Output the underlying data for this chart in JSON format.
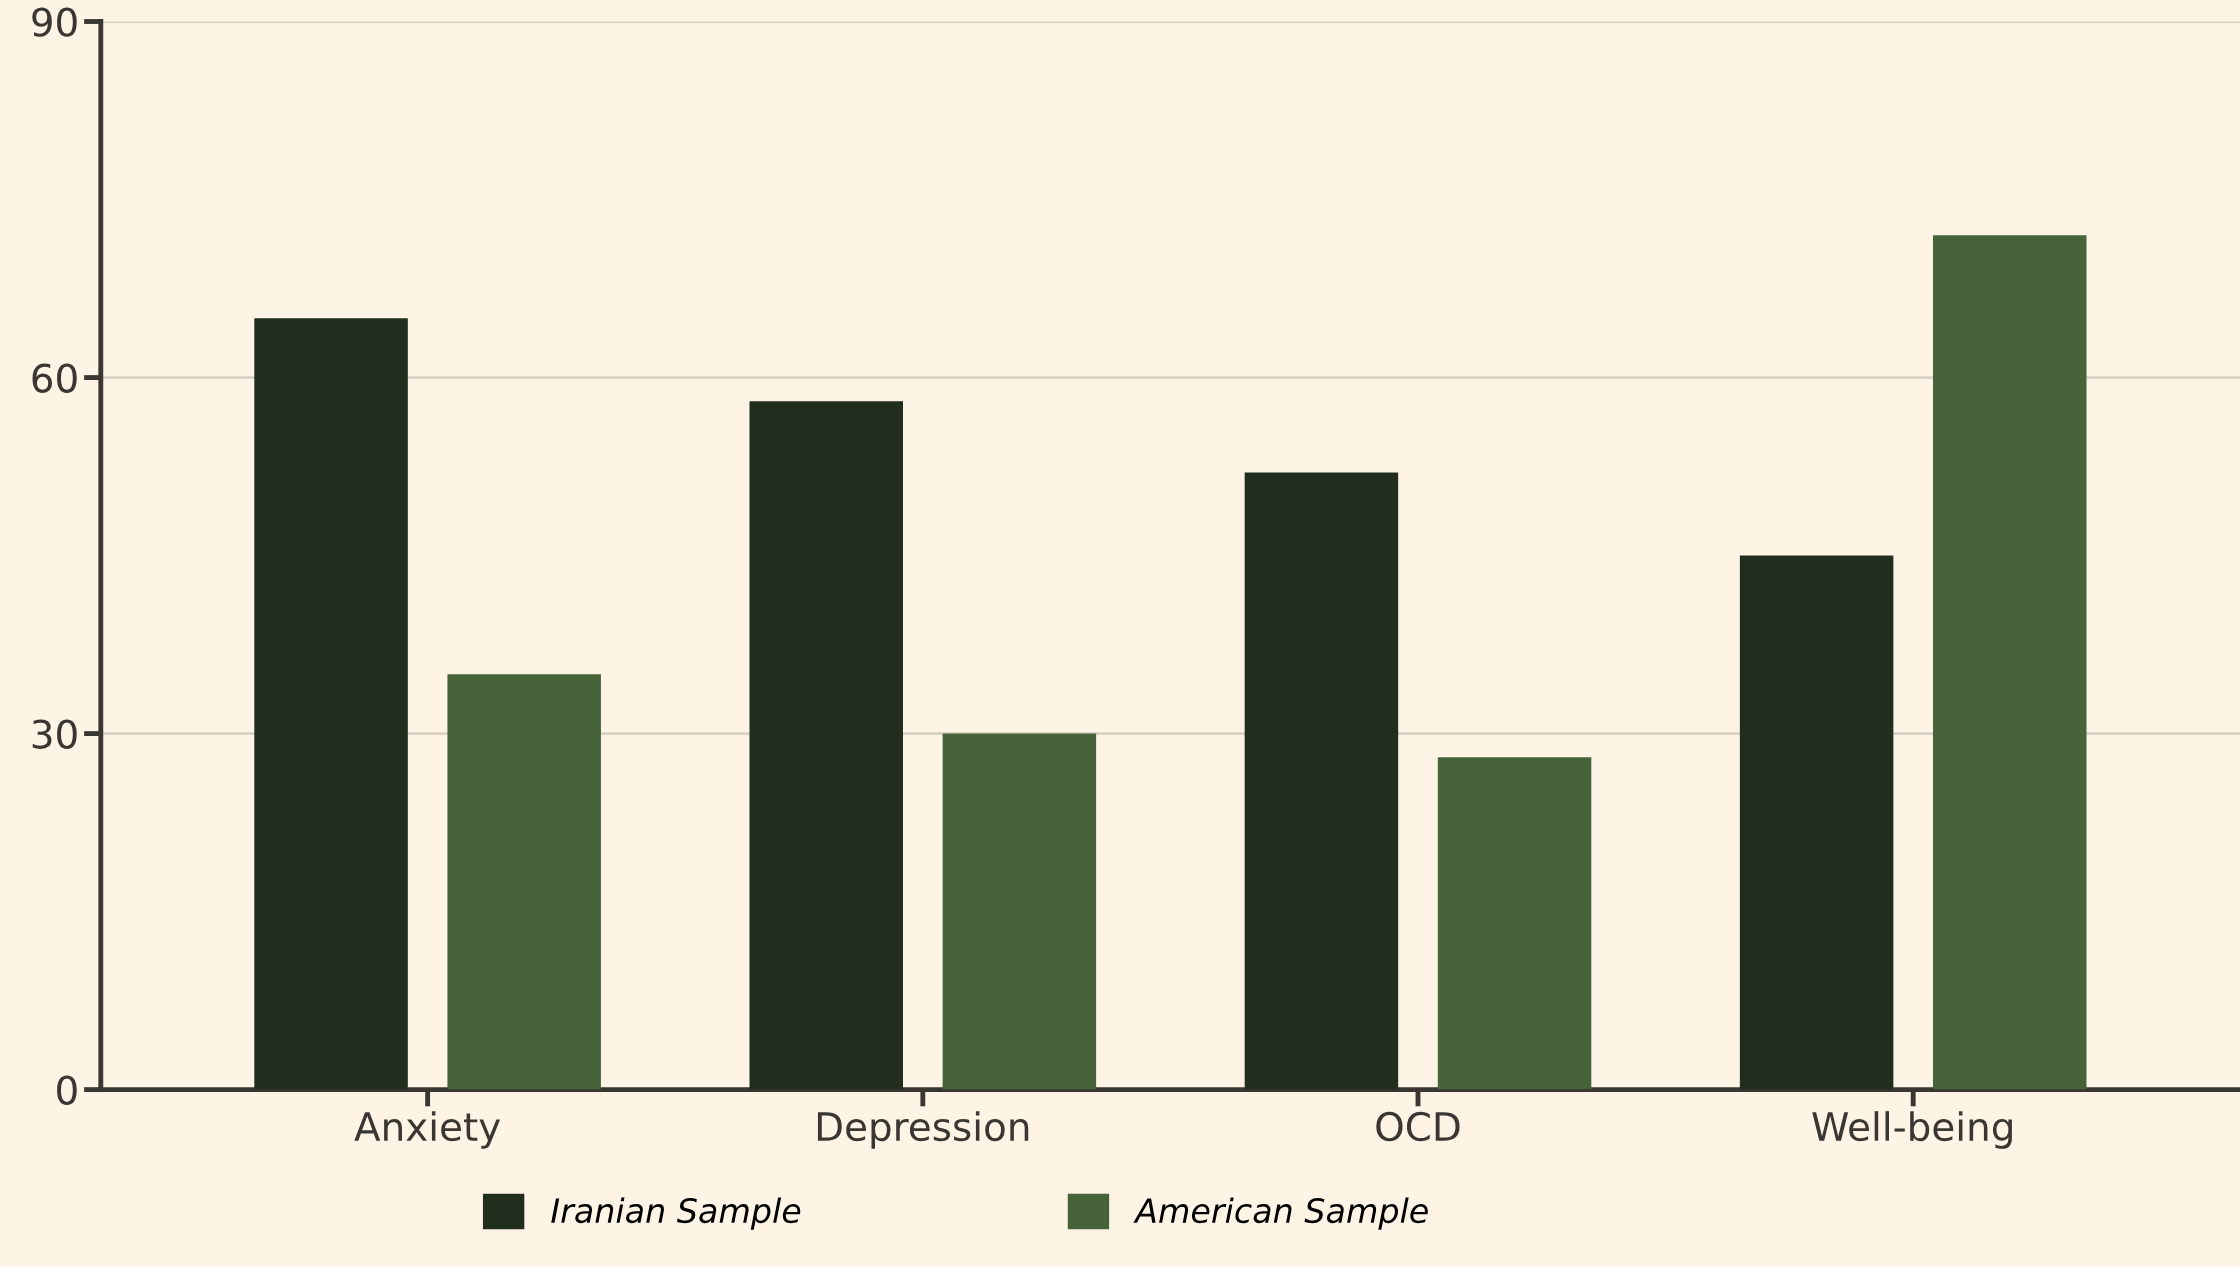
{
  "chart_data": {
    "type": "bar",
    "categories": [
      "Anxiety",
      "Depression",
      "OCD",
      "Well-being"
    ],
    "series": [
      {
        "name": "Iranian Sample",
        "color": "#212e1d",
        "values": [
          65,
          58,
          52,
          45
        ]
      },
      {
        "name": "American Sample",
        "color": "#46633a",
        "values": [
          35,
          30,
          28,
          72
        ]
      }
    ],
    "ylim": [
      0,
      90
    ],
    "yticks": [
      0,
      30,
      60,
      90
    ],
    "grid": "y",
    "legend": "bottom"
  }
}
